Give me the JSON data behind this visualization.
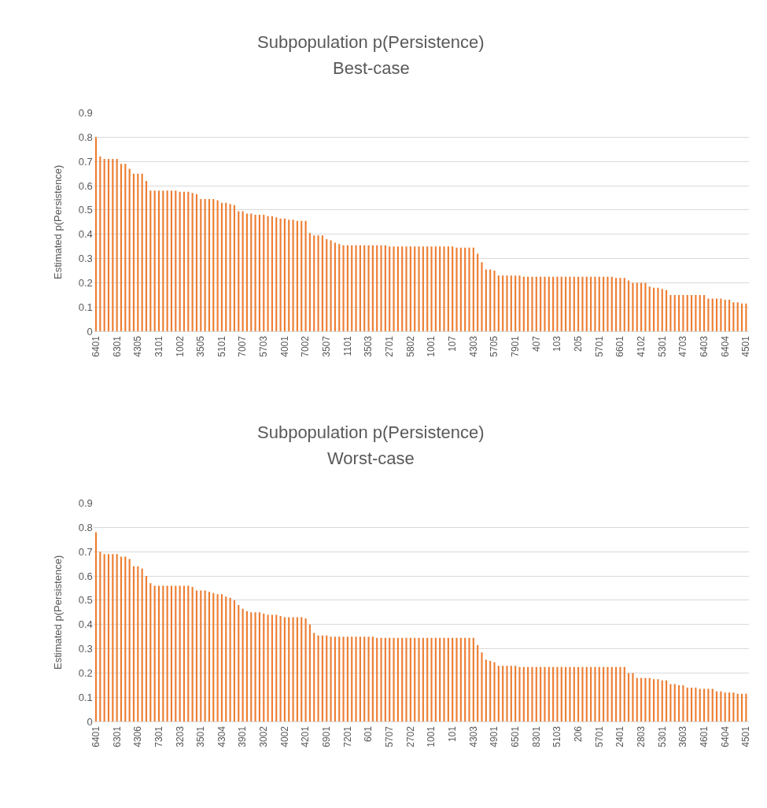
{
  "chart_data": [
    {
      "type": "bar",
      "title": "Subpopulation p(Persistence)",
      "subtitle": "Best-case",
      "ylabel": "Estimated p(Persistence)",
      "color": "#ed7d31",
      "ylim": [
        0,
        0.9
      ],
      "yticks": [
        0,
        0.1,
        0.2,
        0.3,
        0.4,
        0.5,
        0.6,
        0.7,
        0.8,
        0.9
      ],
      "grid": "y",
      "categories": [
        "6401",
        null,
        null,
        null,
        null,
        "6301",
        null,
        null,
        null,
        null,
        "4305",
        null,
        null,
        null,
        null,
        "3101",
        null,
        null,
        null,
        null,
        "1002",
        null,
        null,
        null,
        null,
        "3505",
        null,
        null,
        null,
        null,
        "5101",
        null,
        null,
        null,
        null,
        "7007",
        null,
        null,
        null,
        null,
        "5703",
        null,
        null,
        null,
        null,
        "4001",
        null,
        null,
        null,
        null,
        "7002",
        null,
        null,
        null,
        null,
        "3507",
        null,
        null,
        null,
        null,
        "1101",
        null,
        null,
        null,
        null,
        "3503",
        null,
        null,
        null,
        null,
        "2701",
        null,
        null,
        null,
        null,
        "5802",
        null,
        null,
        null,
        null,
        "1001",
        null,
        null,
        null,
        null,
        "107",
        null,
        null,
        null,
        null,
        "4303",
        null,
        null,
        null,
        null,
        "5705",
        null,
        null,
        null,
        null,
        "7901",
        null,
        null,
        null,
        null,
        "407",
        null,
        null,
        null,
        null,
        "103",
        null,
        null,
        null,
        null,
        "205",
        null,
        null,
        null,
        null,
        "5701",
        null,
        null,
        null,
        null,
        "6601",
        null,
        null,
        null,
        null,
        "4102",
        null,
        null,
        null,
        null,
        "5301",
        null,
        null,
        null,
        null,
        "4703",
        null,
        null,
        null,
        null,
        "6403",
        null,
        null,
        null,
        null,
        "6404",
        null,
        null,
        null,
        null,
        "4501"
      ],
      "values": [
        0.8,
        0.72,
        0.71,
        0.71,
        0.71,
        0.71,
        0.69,
        0.69,
        0.67,
        0.65,
        0.65,
        0.65,
        0.62,
        0.58,
        0.58,
        0.58,
        0.58,
        0.58,
        0.58,
        0.58,
        0.575,
        0.575,
        0.575,
        0.57,
        0.565,
        0.545,
        0.545,
        0.545,
        0.545,
        0.54,
        0.53,
        0.53,
        0.525,
        0.52,
        0.495,
        0.495,
        0.485,
        0.485,
        0.48,
        0.48,
        0.48,
        0.475,
        0.475,
        0.47,
        0.465,
        0.465,
        0.46,
        0.46,
        0.455,
        0.455,
        0.455,
        0.405,
        0.395,
        0.395,
        0.395,
        0.38,
        0.375,
        0.365,
        0.36,
        0.355,
        0.355,
        0.355,
        0.355,
        0.355,
        0.355,
        0.355,
        0.355,
        0.355,
        0.355,
        0.355,
        0.35,
        0.35,
        0.35,
        0.35,
        0.35,
        0.35,
        0.35,
        0.35,
        0.35,
        0.35,
        0.35,
        0.35,
        0.35,
        0.35,
        0.35,
        0.35,
        0.345,
        0.345,
        0.345,
        0.345,
        0.345,
        0.32,
        0.285,
        0.255,
        0.255,
        0.25,
        0.23,
        0.23,
        0.23,
        0.23,
        0.23,
        0.23,
        0.225,
        0.225,
        0.225,
        0.225,
        0.225,
        0.225,
        0.225,
        0.225,
        0.225,
        0.225,
        0.225,
        0.225,
        0.225,
        0.225,
        0.225,
        0.225,
        0.225,
        0.225,
        0.225,
        0.225,
        0.225,
        0.225,
        0.22,
        0.22,
        0.22,
        0.21,
        0.2,
        0.2,
        0.2,
        0.2,
        0.185,
        0.18,
        0.18,
        0.175,
        0.17,
        0.15,
        0.15,
        0.15,
        0.15,
        0.15,
        0.15,
        0.15,
        0.15,
        0.15,
        0.135,
        0.135,
        0.135,
        0.135,
        0.13,
        0.13,
        0.12,
        0.12,
        0.115,
        0.115
      ]
    },
    {
      "type": "bar",
      "title": "Subpopulation p(Persistence)",
      "subtitle": "Worst-case",
      "ylabel": "Estimated p(Persistence)",
      "color": "#ed7d31",
      "ylim": [
        0,
        0.9
      ],
      "yticks": [
        0,
        0.1,
        0.2,
        0.3,
        0.4,
        0.5,
        0.6,
        0.7,
        0.8,
        0.9
      ],
      "grid": "y",
      "categories": [
        "6401",
        null,
        null,
        null,
        null,
        "6301",
        null,
        null,
        null,
        null,
        "4306",
        null,
        null,
        null,
        null,
        "7301",
        null,
        null,
        null,
        null,
        "3203",
        null,
        null,
        null,
        null,
        "3501",
        null,
        null,
        null,
        null,
        "4304",
        null,
        null,
        null,
        null,
        "3901",
        null,
        null,
        null,
        null,
        "3002",
        null,
        null,
        null,
        null,
        "4002",
        null,
        null,
        null,
        null,
        "4201",
        null,
        null,
        null,
        null,
        "6901",
        null,
        null,
        null,
        null,
        "7201",
        null,
        null,
        null,
        null,
        "601",
        null,
        null,
        null,
        null,
        "5707",
        null,
        null,
        null,
        null,
        "2702",
        null,
        null,
        null,
        null,
        "1001",
        null,
        null,
        null,
        null,
        "101",
        null,
        null,
        null,
        null,
        "4303",
        null,
        null,
        null,
        null,
        "4901",
        null,
        null,
        null,
        null,
        "6501",
        null,
        null,
        null,
        null,
        "8301",
        null,
        null,
        null,
        null,
        "5103",
        null,
        null,
        null,
        null,
        "206",
        null,
        null,
        null,
        null,
        "5701",
        null,
        null,
        null,
        null,
        "2401",
        null,
        null,
        null,
        null,
        "2803",
        null,
        null,
        null,
        null,
        "5301",
        null,
        null,
        null,
        null,
        "3603",
        null,
        null,
        null,
        null,
        "4601",
        null,
        null,
        null,
        null,
        "6404",
        null,
        null,
        null,
        null,
        "4501"
      ],
      "values": [
        0.78,
        0.7,
        0.69,
        0.69,
        0.69,
        0.69,
        0.68,
        0.68,
        0.67,
        0.64,
        0.64,
        0.63,
        0.6,
        0.57,
        0.56,
        0.56,
        0.56,
        0.56,
        0.56,
        0.56,
        0.56,
        0.56,
        0.56,
        0.555,
        0.54,
        0.54,
        0.54,
        0.535,
        0.53,
        0.525,
        0.525,
        0.515,
        0.51,
        0.5,
        0.48,
        0.465,
        0.455,
        0.45,
        0.45,
        0.45,
        0.445,
        0.44,
        0.44,
        0.44,
        0.435,
        0.43,
        0.43,
        0.43,
        0.43,
        0.43,
        0.425,
        0.4,
        0.365,
        0.355,
        0.355,
        0.355,
        0.35,
        0.35,
        0.35,
        0.35,
        0.35,
        0.35,
        0.35,
        0.35,
        0.35,
        0.35,
        0.35,
        0.345,
        0.345,
        0.345,
        0.345,
        0.345,
        0.345,
        0.345,
        0.345,
        0.345,
        0.345,
        0.345,
        0.345,
        0.345,
        0.345,
        0.345,
        0.345,
        0.345,
        0.345,
        0.345,
        0.345,
        0.345,
        0.345,
        0.345,
        0.345,
        0.315,
        0.285,
        0.255,
        0.25,
        0.245,
        0.23,
        0.23,
        0.23,
        0.23,
        0.23,
        0.225,
        0.225,
        0.225,
        0.225,
        0.225,
        0.225,
        0.225,
        0.225,
        0.225,
        0.225,
        0.225,
        0.225,
        0.225,
        0.225,
        0.225,
        0.225,
        0.225,
        0.225,
        0.225,
        0.225,
        0.225,
        0.225,
        0.225,
        0.225,
        0.225,
        0.225,
        0.2,
        0.2,
        0.18,
        0.18,
        0.18,
        0.18,
        0.175,
        0.175,
        0.17,
        0.17,
        0.155,
        0.155,
        0.15,
        0.15,
        0.14,
        0.14,
        0.14,
        0.135,
        0.135,
        0.135,
        0.135,
        0.125,
        0.125,
        0.12,
        0.12,
        0.12,
        0.115,
        0.115,
        0.115
      ]
    }
  ]
}
